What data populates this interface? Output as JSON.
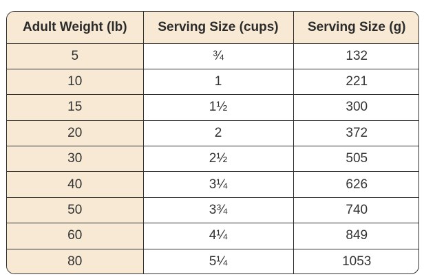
{
  "table": {
    "headers": [
      "Adult Weight (lb)",
      "Serving Size (cups)",
      "Serving Size (g)"
    ],
    "rows": [
      [
        "5",
        "¾",
        "132"
      ],
      [
        "10",
        "1",
        "221"
      ],
      [
        "15",
        "1½",
        "300"
      ],
      [
        "20",
        "2",
        "372"
      ],
      [
        "30",
        "2½",
        "505"
      ],
      [
        "40",
        "3¼",
        "626"
      ],
      [
        "50",
        "3¾",
        "740"
      ],
      [
        "60",
        "4¼",
        "849"
      ],
      [
        "80",
        "5¼",
        "1053"
      ]
    ]
  },
  "colors": {
    "header_bg": "#f7e9d3",
    "first_column_bg": "#f7e9d3",
    "border": "#2f2f2f",
    "text": "#333333"
  }
}
